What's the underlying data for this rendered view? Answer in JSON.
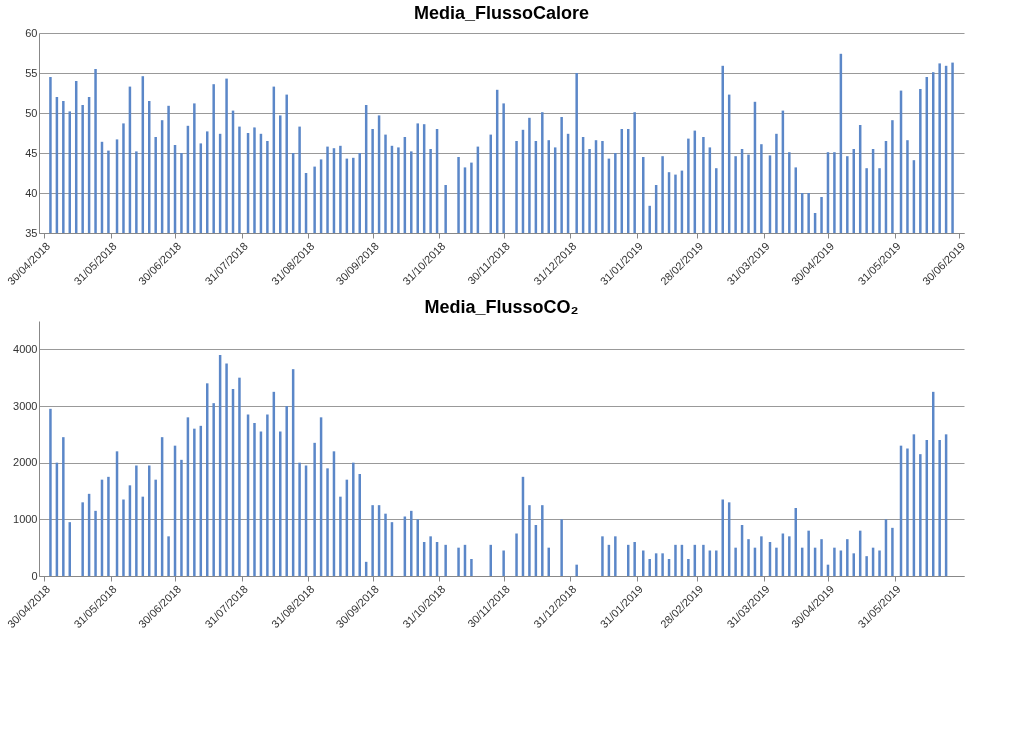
{
  "chart_data": [
    {
      "type": "bar",
      "title": "Media_FlussoCalore",
      "color": "#5b87c8",
      "grid": "y",
      "x": [
        "2018-05-03",
        "2018-05-06",
        "2018-05-09",
        "2018-05-12",
        "2018-05-15",
        "2018-05-18",
        "2018-05-21",
        "2018-05-24",
        "2018-05-27",
        "2018-05-30",
        "2018-06-03",
        "2018-06-06",
        "2018-06-09",
        "2018-06-12",
        "2018-06-15",
        "2018-06-18",
        "2018-06-21",
        "2018-06-24",
        "2018-06-27",
        "2018-06-30",
        "2018-07-03",
        "2018-07-06",
        "2018-07-09",
        "2018-07-12",
        "2018-07-15",
        "2018-07-18",
        "2018-07-21",
        "2018-07-24",
        "2018-07-27",
        "2018-07-30",
        "2018-08-03",
        "2018-08-06",
        "2018-08-09",
        "2018-08-12",
        "2018-08-15",
        "2018-08-18",
        "2018-08-21",
        "2018-08-24",
        "2018-08-27",
        "2018-08-30",
        "2018-09-03",
        "2018-09-06",
        "2018-09-09",
        "2018-09-12",
        "2018-09-15",
        "2018-09-18",
        "2018-09-21",
        "2018-09-24",
        "2018-09-27",
        "2018-09-30",
        "2018-10-03",
        "2018-10-06",
        "2018-10-09",
        "2018-10-12",
        "2018-10-15",
        "2018-10-18",
        "2018-10-21",
        "2018-10-24",
        "2018-10-27",
        "2018-10-30",
        "2018-11-03",
        "2018-11-06",
        "2018-11-09",
        "2018-11-12",
        "2018-11-15",
        "2018-11-18",
        "2018-11-21",
        "2018-11-24",
        "2018-11-27",
        "2018-11-30",
        "2018-12-03",
        "2018-12-06",
        "2018-12-09",
        "2018-12-12",
        "2018-12-15",
        "2018-12-18",
        "2018-12-21",
        "2018-12-24",
        "2018-12-27",
        "2018-12-30",
        "2019-01-03",
        "2019-01-06",
        "2019-01-09",
        "2019-01-12",
        "2019-01-15",
        "2019-01-18",
        "2019-01-21",
        "2019-01-24",
        "2019-01-27",
        "2019-01-30",
        "2019-02-03",
        "2019-02-06",
        "2019-02-09",
        "2019-02-12",
        "2019-02-15",
        "2019-02-18",
        "2019-02-21",
        "2019-02-24",
        "2019-02-27",
        "2019-03-03",
        "2019-03-06",
        "2019-03-09",
        "2019-03-12",
        "2019-03-15",
        "2019-03-18",
        "2019-03-21",
        "2019-03-24",
        "2019-03-27",
        "2019-03-30",
        "2019-04-03",
        "2019-04-06",
        "2019-04-09",
        "2019-04-12",
        "2019-04-15",
        "2019-04-18",
        "2019-04-21",
        "2019-04-24",
        "2019-04-27",
        "2019-04-30",
        "2019-05-03",
        "2019-05-06",
        "2019-05-09",
        "2019-05-12",
        "2019-05-15",
        "2019-05-18",
        "2019-05-21",
        "2019-05-24",
        "2019-05-27",
        "2019-05-30",
        "2019-06-03",
        "2019-06-06",
        "2019-06-09",
        "2019-06-12",
        "2019-06-15",
        "2019-06-18",
        "2019-06-21",
        "2019-06-24",
        "2019-06-27"
      ],
      "values": [
        54.5,
        52,
        51.5,
        50.2,
        54,
        51,
        52,
        55.5,
        46.4,
        45.3,
        46.7,
        48.7,
        53.3,
        45.2,
        54.6,
        51.5,
        47,
        49.1,
        50.9,
        46,
        45,
        48.4,
        51.2,
        46.2,
        47.7,
        53.6,
        47.4,
        54.3,
        50.3,
        48.3,
        47.5,
        48.2,
        47.4,
        46.5,
        53.3,
        49.7,
        52.3,
        45,
        48.3,
        42.5,
        43.3,
        44.2,
        45.8,
        45.6,
        45.9,
        44.3,
        44.4,
        45,
        51,
        48,
        49.7,
        47.3,
        45.9,
        45.7,
        47,
        45.2,
        48.7,
        48.6,
        45.5,
        48,
        41,
        null,
        44.5,
        43.2,
        43.8,
        45.8,
        null,
        47.3,
        52.9,
        51.2,
        null,
        46.5,
        47.9,
        49.4,
        46.5,
        50.1,
        46.6,
        45.7,
        49.5,
        47.4,
        55,
        47,
        45.5,
        46.6,
        46.5,
        44.3,
        45,
        48,
        48,
        50.1,
        44.5,
        38.4,
        41,
        44.6,
        42.6,
        42.3,
        42.8,
        46.8,
        47.8,
        47,
        45.7,
        43.1,
        55.9,
        52.3,
        44.6,
        45.5,
        44.8,
        51.4,
        46.1,
        44.7,
        47.4,
        50.3,
        45.1,
        43.2,
        40,
        40,
        37.5,
        39.5,
        45.1,
        45.1,
        57.4,
        44.6,
        45.5,
        48.5,
        43.1,
        45.5,
        43.1,
        46.5,
        49.1,
        52.8,
        46.6,
        44.1,
        53,
        54.5,
        55.1,
        56.2,
        55.9,
        56.3
      ],
      "xlim": [
        "2018-04-30",
        "2019-06-30"
      ],
      "xticks": [
        {
          "value": "2018-04-30",
          "label": "30/04/2018"
        },
        {
          "value": "2018-05-31",
          "label": "31/05/2018"
        },
        {
          "value": "2018-06-30",
          "label": "30/06/2018"
        },
        {
          "value": "2018-07-31",
          "label": "31/07/2018"
        },
        {
          "value": "2018-08-31",
          "label": "31/08/2018"
        },
        {
          "value": "2018-09-30",
          "label": "30/09/2018"
        },
        {
          "value": "2018-10-31",
          "label": "31/10/2018"
        },
        {
          "value": "2018-11-30",
          "label": "30/11/2018"
        },
        {
          "value": "2018-12-31",
          "label": "31/12/2018"
        },
        {
          "value": "2019-01-31",
          "label": "31/01/2019"
        },
        {
          "value": "2019-02-28",
          "label": "28/02/2019"
        },
        {
          "value": "2019-03-31",
          "label": "31/03/2019"
        },
        {
          "value": "2019-04-30",
          "label": "30/04/2019"
        },
        {
          "value": "2019-05-31",
          "label": "31/05/2019"
        },
        {
          "value": "2019-06-30",
          "label": "30/06/2019"
        }
      ],
      "ylim": [
        35,
        60
      ],
      "yticks": [
        35,
        40,
        45,
        50,
        55,
        60
      ]
    },
    {
      "type": "bar",
      "title": "Media_FlussoCO₂",
      "color": "#5b87c8",
      "grid": "y",
      "x": [
        "2018-05-03",
        "2018-05-06",
        "2018-05-09",
        "2018-05-12",
        "2018-05-15",
        "2018-05-18",
        "2018-05-21",
        "2018-05-24",
        "2018-05-27",
        "2018-05-30",
        "2018-06-03",
        "2018-06-06",
        "2018-06-09",
        "2018-06-12",
        "2018-06-15",
        "2018-06-18",
        "2018-06-21",
        "2018-06-24",
        "2018-06-27",
        "2018-06-30",
        "2018-07-03",
        "2018-07-06",
        "2018-07-09",
        "2018-07-12",
        "2018-07-15",
        "2018-07-18",
        "2018-07-21",
        "2018-07-24",
        "2018-07-27",
        "2018-07-30",
        "2018-08-03",
        "2018-08-06",
        "2018-08-09",
        "2018-08-12",
        "2018-08-15",
        "2018-08-18",
        "2018-08-21",
        "2018-08-24",
        "2018-08-27",
        "2018-08-30",
        "2018-09-03",
        "2018-09-06",
        "2018-09-09",
        "2018-09-12",
        "2018-09-15",
        "2018-09-18",
        "2018-09-21",
        "2018-09-24",
        "2018-09-27",
        "2018-09-30",
        "2018-10-03",
        "2018-10-06",
        "2018-10-09",
        "2018-10-12",
        "2018-10-15",
        "2018-10-18",
        "2018-10-21",
        "2018-10-24",
        "2018-10-27",
        "2018-10-30",
        "2018-11-03",
        "2018-11-06",
        "2018-11-09",
        "2018-11-12",
        "2018-11-15",
        "2018-11-18",
        "2018-11-21",
        "2018-11-24",
        "2018-11-27",
        "2018-11-30",
        "2018-12-03",
        "2018-12-06",
        "2018-12-09",
        "2018-12-12",
        "2018-12-15",
        "2018-12-18",
        "2018-12-21",
        "2018-12-24",
        "2018-12-27",
        "2018-12-30",
        "2019-01-03",
        "2019-01-06",
        "2019-01-09",
        "2019-01-12",
        "2019-01-15",
        "2019-01-18",
        "2019-01-21",
        "2019-01-24",
        "2019-01-27",
        "2019-01-30",
        "2019-02-03",
        "2019-02-06",
        "2019-02-09",
        "2019-02-12",
        "2019-02-15",
        "2019-02-18",
        "2019-02-21",
        "2019-02-24",
        "2019-02-27",
        "2019-03-03",
        "2019-03-06",
        "2019-03-09",
        "2019-03-12",
        "2019-03-15",
        "2019-03-18",
        "2019-03-21",
        "2019-03-24",
        "2019-03-27",
        "2019-03-30",
        "2019-04-03",
        "2019-04-06",
        "2019-04-09",
        "2019-04-12",
        "2019-04-15",
        "2019-04-18",
        "2019-04-21",
        "2019-04-24",
        "2019-04-27",
        "2019-04-30",
        "2019-05-03",
        "2019-05-06",
        "2019-05-09",
        "2019-05-12",
        "2019-05-15",
        "2019-05-18",
        "2019-05-21",
        "2019-05-24",
        "2019-05-27",
        "2019-05-30",
        "2019-06-03",
        "2019-06-06",
        "2019-06-09",
        "2019-06-12",
        "2019-06-15",
        "2019-06-18",
        "2019-06-21",
        "2019-06-24"
      ],
      "values": [
        2950,
        2000,
        2450,
        950,
        null,
        1300,
        1450,
        1150,
        1700,
        1750,
        2200,
        1350,
        1600,
        1950,
        1400,
        1950,
        1700,
        2450,
        700,
        2300,
        2050,
        2800,
        2600,
        2650,
        3400,
        3050,
        3900,
        3750,
        3300,
        3500,
        2850,
        2700,
        2550,
        2850,
        3250,
        2550,
        3000,
        3650,
        2000,
        1950,
        2350,
        2800,
        1900,
        2200,
        1400,
        1700,
        2000,
        1800,
        250,
        1250,
        1250,
        1100,
        950,
        null,
        1050,
        1150,
        1000,
        600,
        700,
        600,
        550,
        null,
        500,
        550,
        300,
        null,
        null,
        550,
        null,
        450,
        null,
        750,
        1750,
        1250,
        900,
        1250,
        500,
        null,
        1000,
        null,
        200,
        null,
        null,
        null,
        700,
        550,
        700,
        null,
        550,
        600,
        450,
        300,
        400,
        400,
        300,
        550,
        550,
        300,
        550,
        550,
        450,
        450,
        1350,
        1300,
        500,
        900,
        650,
        500,
        700,
        600,
        500,
        750,
        700,
        1200,
        500,
        800,
        500,
        650,
        200,
        500,
        450,
        650,
        400,
        800,
        350,
        500,
        450,
        1000,
        850,
        2300,
        2250,
        2500,
        2150,
        2400,
        3250,
        2400,
        2500
      ],
      "xlim": [
        "2018-04-30",
        "2019-06-30"
      ],
      "xticks": [
        {
          "value": "2018-04-30",
          "label": "30/04/2018"
        },
        {
          "value": "2018-05-31",
          "label": "31/05/2018"
        },
        {
          "value": "2018-06-30",
          "label": "30/06/2018"
        },
        {
          "value": "2018-07-31",
          "label": "31/07/2018"
        },
        {
          "value": "2018-08-31",
          "label": "31/08/2018"
        },
        {
          "value": "2018-09-30",
          "label": "30/09/2018"
        },
        {
          "value": "2018-10-31",
          "label": "31/10/2018"
        },
        {
          "value": "2018-11-30",
          "label": "30/11/2018"
        },
        {
          "value": "2018-12-31",
          "label": "31/12/2018"
        },
        {
          "value": "2019-01-31",
          "label": "31/01/2019"
        },
        {
          "value": "2019-02-28",
          "label": "28/02/2019"
        },
        {
          "value": "2019-03-31",
          "label": "31/03/2019"
        },
        {
          "value": "2019-04-30",
          "label": "30/04/2019"
        },
        {
          "value": "2019-05-31",
          "label": "31/05/2019"
        }
      ],
      "ylim": [
        0,
        4500
      ],
      "yticks": [
        0,
        1000,
        2000,
        3000,
        4000
      ]
    }
  ]
}
